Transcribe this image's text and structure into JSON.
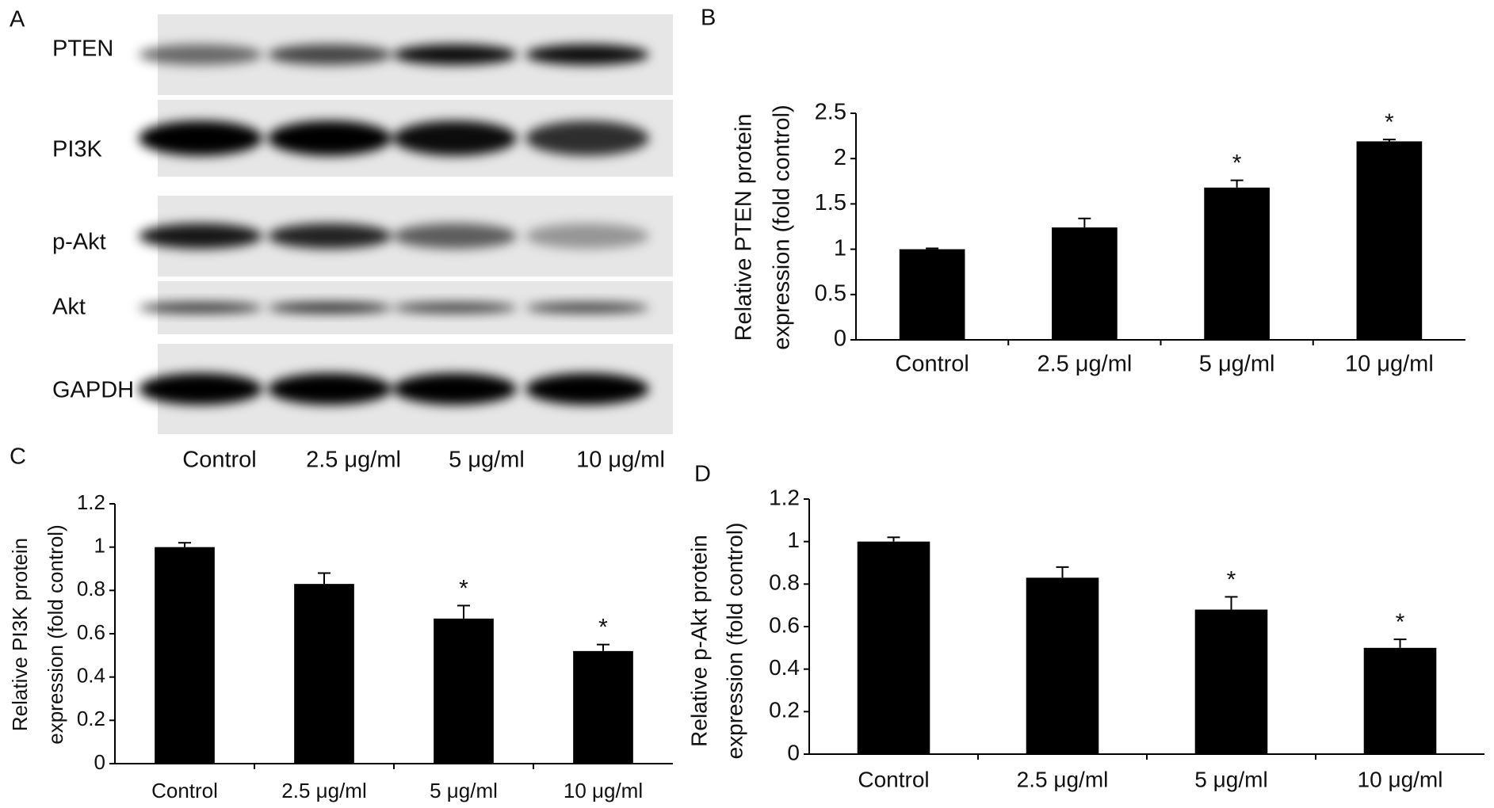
{
  "blot": {
    "panel": "A",
    "proteins": [
      "PTEN",
      "PI3K",
      "p-Akt",
      "Akt",
      "GAPDH"
    ],
    "lanes": [
      "Control",
      "2.5 μg/ml",
      "5 μg/ml",
      "10 μg/ml"
    ]
  },
  "chart_data": [
    {
      "type": "bar",
      "panel": "B",
      "ylabel": [
        "Relative PTEN protein",
        "expression (fold control)"
      ],
      "categories": [
        "Control",
        "2.5 μg/ml",
        "5 μg/ml",
        "10 μg/ml"
      ],
      "values": [
        1.0,
        1.24,
        1.68,
        2.19
      ],
      "errors": [
        0.01,
        0.1,
        0.08,
        0.02
      ],
      "color": "#000000",
      "ylim": [
        0,
        2.5
      ],
      "yticks": [
        0,
        0.5,
        1,
        1.5,
        2,
        2.5
      ],
      "annotations": [
        {
          "text": "*",
          "category": "5 μg/ml"
        },
        {
          "text": "*",
          "category": "10 μg/ml"
        }
      ]
    },
    {
      "type": "bar",
      "panel": "C",
      "ylabel": [
        "Relative PI3K protein",
        "expression (fold control)"
      ],
      "categories": [
        "Control",
        "2.5 μg/ml",
        "5 μg/ml",
        "10 μg/ml"
      ],
      "values": [
        1.0,
        0.83,
        0.67,
        0.52
      ],
      "errors": [
        0.02,
        0.05,
        0.06,
        0.03
      ],
      "color": "#000000",
      "ylim": [
        0,
        1.2
      ],
      "yticks": [
        0,
        0.2,
        0.4,
        0.6,
        0.8,
        1,
        1.2
      ],
      "annotations": [
        {
          "text": "*",
          "category": "5 μg/ml"
        },
        {
          "text": "*",
          "category": "10 μg/ml"
        }
      ]
    },
    {
      "type": "bar",
      "panel": "D",
      "ylabel": [
        "Relative p-Akt protein",
        "expression (fold control)"
      ],
      "categories": [
        "Control",
        "2.5 μg/ml",
        "5 μg/ml",
        "10 μg/ml"
      ],
      "values": [
        1.0,
        0.83,
        0.68,
        0.5
      ],
      "errors": [
        0.02,
        0.05,
        0.06,
        0.04
      ],
      "color": "#000000",
      "ylim": [
        0,
        1.2
      ],
      "yticks": [
        0,
        0.2,
        0.4,
        0.6,
        0.8,
        1,
        1.2
      ],
      "annotations": [
        {
          "text": "*",
          "category": "5 μg/ml"
        },
        {
          "text": "*",
          "category": "10 μg/ml"
        }
      ]
    }
  ]
}
